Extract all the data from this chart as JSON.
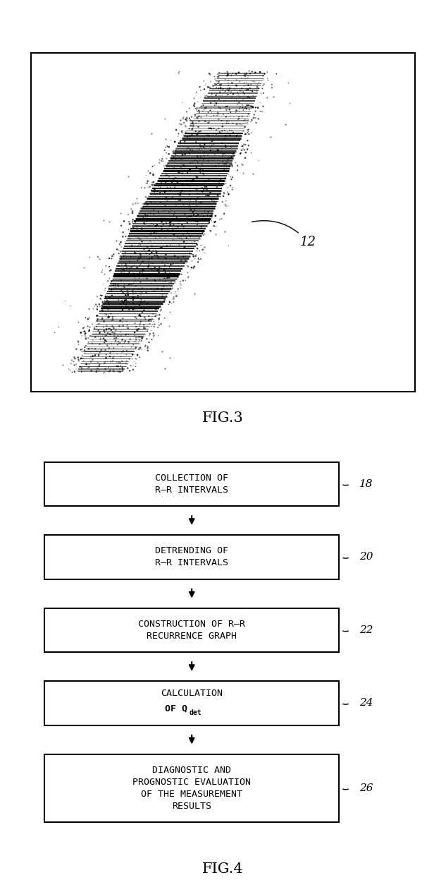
{
  "fig3_label": "FIG.3",
  "fig4_label": "FIG.4",
  "fig3_annotation": "12",
  "flowchart_boxes": [
    {
      "text": "COLLECTION OF\nR–R INTERVALS",
      "label": "18"
    },
    {
      "text": "DETRENDING OF\nR–R INTERVALS",
      "label": "20"
    },
    {
      "text": "CONSTRUCTION OF R–R\nRECURRENCE GRAPH",
      "label": "22"
    },
    {
      "text": "CALCULATION\nOF Q",
      "label": "24"
    },
    {
      "text": "DIAGNOSTIC AND\nPROGNOSTIC EVALUATION\nOF THE MEASUREMENT\nRESULTS",
      "label": "26"
    }
  ],
  "box_color": "#ffffff",
  "box_edge_color": "#000000",
  "arrow_color": "#000000",
  "text_color": "#000000",
  "bg_color": "#ffffff",
  "font_size_box": 9.5,
  "font_size_label": 11,
  "font_size_caption": 15,
  "font_size_annotation": 13,
  "scatter_seed": 42,
  "scatter_n_lines": 80,
  "scatter_n_points": 8000
}
